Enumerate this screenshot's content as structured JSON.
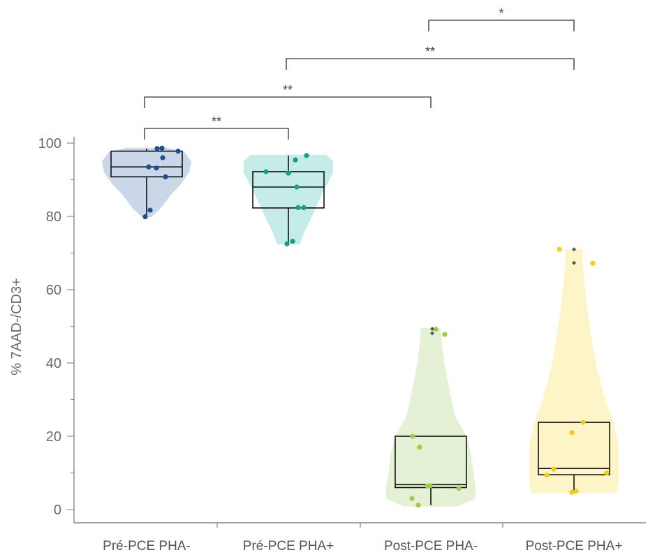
{
  "chart_data": {
    "type": "box",
    "ylabel": "% 7AAD-/CD3+",
    "ylim": [
      0,
      100
    ],
    "yticks": [
      "0",
      "20",
      "40",
      "60",
      "80",
      "100"
    ],
    "categories": [
      "Pré-PCE PHA-",
      "Pré-PCE PHA+",
      "Post-PCE PHA-",
      "Post-PCE PHA+"
    ],
    "groups": [
      {
        "name": "Pré-PCE PHA-",
        "violin_color": "#c7d5e8",
        "point_color": "#1f4e8c",
        "box": {
          "q1": 90.8,
          "median": 93.5,
          "q3": 97.8,
          "whisker_low": 80,
          "whisker_high": 98.5
        },
        "violin": [
          [
            79.8,
            0.1
          ],
          [
            82,
            0.3
          ],
          [
            86,
            0.55
          ],
          [
            89,
            0.78
          ],
          [
            92,
            0.95
          ],
          [
            95,
            1.0
          ],
          [
            97.5,
            0.85
          ],
          [
            98.7,
            0.45
          ]
        ],
        "points": [
          [
            -0.02,
            79.9
          ],
          [
            0.05,
            81.7
          ],
          [
            0.27,
            90.8
          ],
          [
            0.14,
            93.2
          ],
          [
            0.03,
            93.5
          ],
          [
            0.23,
            96
          ],
          [
            0.15,
            98.5
          ],
          [
            0.22,
            98.6
          ],
          [
            0.45,
            97.8
          ]
        ]
      },
      {
        "name": "Pré-PCE PHA+",
        "violin_color": "#c2ebe6",
        "point_color": "#13a08a",
        "box": {
          "q1": 82.3,
          "median": 88,
          "q3": 92.2,
          "whisker_low": 72.5,
          "whisker_high": 96.6
        },
        "violin": [
          [
            72.3,
            0.25
          ],
          [
            75,
            0.33
          ],
          [
            78,
            0.45
          ],
          [
            82,
            0.6
          ],
          [
            86,
            0.75
          ],
          [
            89,
            0.88
          ],
          [
            92,
            1.0
          ],
          [
            95,
            1.0
          ],
          [
            96.8,
            0.85
          ]
        ],
        "points": [
          [
            -0.02,
            72.5
          ],
          [
            0.06,
            73.2
          ],
          [
            0.14,
            82.4
          ],
          [
            0.22,
            82.4
          ],
          [
            0.12,
            88
          ],
          [
            0.0,
            91.8
          ],
          [
            -0.32,
            92.2
          ],
          [
            0.1,
            95.4
          ],
          [
            0.26,
            96.6
          ]
        ]
      },
      {
        "name": "Post-PCE PHA-",
        "violin_color": "#e4f0d2",
        "point_color": "#9ccc4a",
        "box": {
          "q1": 6,
          "median": 6.8,
          "q3": 20,
          "whisker_low": 1.2,
          "whisker_high": 20
        },
        "violin": [
          [
            0.8,
            0.6
          ],
          [
            3,
            1.0
          ],
          [
            6,
            1.0
          ],
          [
            10,
            0.95
          ],
          [
            15,
            0.9
          ],
          [
            20,
            0.8
          ],
          [
            25,
            0.56
          ],
          [
            30,
            0.46
          ],
          [
            35,
            0.38
          ],
          [
            40,
            0.3
          ],
          [
            45,
            0.25
          ],
          [
            49.5,
            0.22
          ]
        ],
        "points": [
          [
            -0.18,
            1.2
          ],
          [
            -0.27,
            3
          ],
          [
            -0.01,
            6.5
          ],
          [
            -0.05,
            6.4
          ],
          [
            0.4,
            5.8
          ],
          [
            -0.16,
            17
          ],
          [
            -0.26,
            20
          ],
          [
            0.07,
            49.2
          ],
          [
            0.2,
            47.8
          ]
        ],
        "outliers": [
          [
            0.02,
            49.3
          ],
          [
            0.02,
            48.1
          ]
        ]
      },
      {
        "name": "Post-PCE PHA+",
        "violin_color": "#fdf3c5",
        "point_color": "#f2cc1d",
        "box": {
          "q1": 9.5,
          "median": 11.2,
          "q3": 23.8,
          "whisker_low": 4.5,
          "whisker_high": 23.8
        },
        "violin": [
          [
            4.5,
            0.95
          ],
          [
            8,
            1.0
          ],
          [
            12,
            1.0
          ],
          [
            18,
            1.0
          ],
          [
            24,
            0.88
          ],
          [
            30,
            0.7
          ],
          [
            38,
            0.52
          ],
          [
            46,
            0.4
          ],
          [
            55,
            0.3
          ],
          [
            63,
            0.22
          ],
          [
            71,
            0.18
          ]
        ],
        "points": [
          [
            -0.39,
            9.4
          ],
          [
            -0.29,
            11
          ],
          [
            0.47,
            10
          ],
          [
            -0.03,
            4.7
          ],
          [
            0.03,
            5
          ],
          [
            -0.03,
            21
          ],
          [
            0.13,
            23.8
          ],
          [
            -0.21,
            71
          ],
          [
            0.27,
            67.2
          ]
        ],
        "outliers": [
          [
            0.0,
            71
          ],
          [
            0.0,
            67.3
          ]
        ]
      }
    ],
    "significance": [
      {
        "from": 0,
        "to": 1,
        "label": "**"
      },
      {
        "from": 0,
        "to": 2,
        "label": "**"
      },
      {
        "from": 1,
        "to": 3,
        "label": "**"
      },
      {
        "from": 2,
        "to": 3,
        "label": "*"
      }
    ]
  }
}
